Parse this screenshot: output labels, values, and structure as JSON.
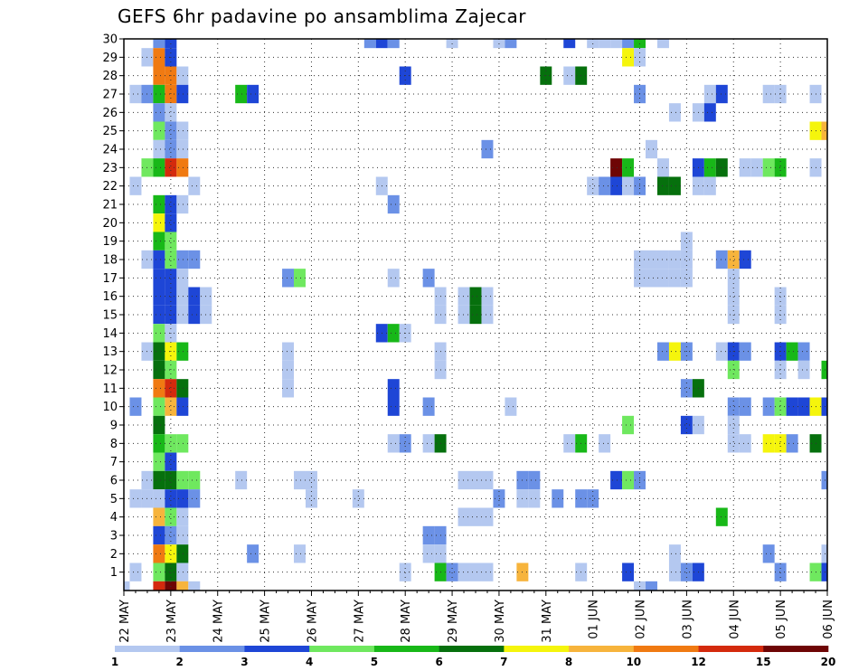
{
  "chart_data": {
    "type": "heatmap",
    "title": "GEFS 6hr padavine po ansamblima Zajecar",
    "x_tick_labels": [
      "22 MAY",
      "23 MAY",
      "24 MAY",
      "25 MAY",
      "26 MAY",
      "27 MAY",
      "28 MAY",
      "29 MAY",
      "30 MAY",
      "31 MAY",
      "01 JUN",
      "02 JUN",
      "03 JUN",
      "04 JUN",
      "05 JUN",
      "06 JUN"
    ],
    "y_tick_labels": [
      "1",
      "2",
      "3",
      "4",
      "5",
      "6",
      "7",
      "8",
      "9",
      "10",
      "11",
      "12",
      "13",
      "14",
      "15",
      "16",
      "17",
      "18",
      "19",
      "20",
      "21",
      "22",
      "23",
      "24",
      "25",
      "26",
      "27",
      "28",
      "29",
      "30"
    ],
    "y_range": [
      0,
      30
    ],
    "x_steps_per_day": 4,
    "x_range_steps": [
      0,
      60
    ],
    "grid": true,
    "colorbar": {
      "placement": "bottom",
      "levels": [
        "1",
        "2",
        "3",
        "4",
        "5",
        "6",
        "7",
        "8",
        "10",
        "12",
        "15",
        "20"
      ],
      "colors": [
        "#b4c8f0",
        "#6b91e6",
        "#1e46d6",
        "#6fe85f",
        "#18b818",
        "#06700d",
        "#f5f50c",
        "#f7b43c",
        "#f07a12",
        "#d42a0d",
        "#6e0505"
      ]
    },
    "cells": [
      [
        3,
        30,
        1
      ],
      [
        4,
        30,
        2
      ],
      [
        21,
        30,
        1
      ],
      [
        22,
        30,
        2
      ],
      [
        23,
        30,
        1
      ],
      [
        28,
        30,
        0
      ],
      [
        32,
        30,
        0
      ],
      [
        33,
        30,
        1
      ],
      [
        38,
        30,
        2
      ],
      [
        40,
        30,
        0
      ],
      [
        41,
        30,
        0
      ],
      [
        42,
        30,
        0
      ],
      [
        43,
        30,
        1
      ],
      [
        44,
        30,
        4
      ],
      [
        46,
        30,
        0
      ],
      [
        2,
        29,
        0
      ],
      [
        3,
        29,
        8
      ],
      [
        4,
        29,
        2
      ],
      [
        43,
        29,
        6
      ],
      [
        44,
        29,
        0
      ],
      [
        3,
        28,
        8
      ],
      [
        4,
        28,
        8
      ],
      [
        5,
        28,
        0
      ],
      [
        24,
        28,
        2
      ],
      [
        36,
        28,
        5
      ],
      [
        38,
        28,
        0
      ],
      [
        39,
        28,
        5
      ],
      [
        1,
        27,
        0
      ],
      [
        2,
        27,
        1
      ],
      [
        3,
        27,
        4
      ],
      [
        4,
        27,
        8
      ],
      [
        5,
        27,
        2
      ],
      [
        10,
        27,
        4
      ],
      [
        11,
        27,
        2
      ],
      [
        44,
        27,
        1
      ],
      [
        50,
        27,
        0
      ],
      [
        51,
        27,
        2
      ],
      [
        55,
        27,
        0
      ],
      [
        56,
        27,
        0
      ],
      [
        59,
        27,
        0
      ],
      [
        3,
        26,
        1
      ],
      [
        4,
        26,
        0
      ],
      [
        47,
        26,
        0
      ],
      [
        49,
        26,
        0
      ],
      [
        50,
        26,
        2
      ],
      [
        3,
        25,
        3
      ],
      [
        4,
        25,
        1
      ],
      [
        5,
        25,
        0
      ],
      [
        59,
        25,
        6
      ],
      [
        60,
        25,
        7
      ],
      [
        3,
        24,
        0
      ],
      [
        4,
        24,
        1
      ],
      [
        5,
        24,
        0
      ],
      [
        31,
        24,
        1
      ],
      [
        45,
        24,
        0
      ],
      [
        2,
        23,
        3
      ],
      [
        3,
        23,
        4
      ],
      [
        4,
        23,
        9
      ],
      [
        5,
        23,
        8
      ],
      [
        42,
        23,
        10
      ],
      [
        43,
        23,
        4
      ],
      [
        46,
        23,
        0
      ],
      [
        49,
        23,
        2
      ],
      [
        50,
        23,
        4
      ],
      [
        51,
        23,
        5
      ],
      [
        53,
        23,
        0
      ],
      [
        54,
        23,
        0
      ],
      [
        55,
        23,
        3
      ],
      [
        56,
        23,
        4
      ],
      [
        59,
        23,
        0
      ],
      [
        1,
        22,
        0
      ],
      [
        6,
        22,
        0
      ],
      [
        22,
        22,
        0
      ],
      [
        40,
        22,
        0
      ],
      [
        41,
        22,
        1
      ],
      [
        42,
        22,
        2
      ],
      [
        43,
        22,
        0
      ],
      [
        44,
        22,
        1
      ],
      [
        46,
        22,
        5
      ],
      [
        47,
        22,
        5
      ],
      [
        49,
        22,
        0
      ],
      [
        50,
        22,
        0
      ],
      [
        3,
        21,
        4
      ],
      [
        4,
        21,
        2
      ],
      [
        5,
        21,
        0
      ],
      [
        23,
        21,
        1
      ],
      [
        3,
        20,
        6
      ],
      [
        4,
        20,
        2
      ],
      [
        3,
        19,
        4
      ],
      [
        4,
        19,
        3
      ],
      [
        48,
        19,
        0
      ],
      [
        2,
        18,
        0
      ],
      [
        3,
        18,
        2
      ],
      [
        4,
        18,
        3
      ],
      [
        5,
        18,
        1
      ],
      [
        6,
        18,
        1
      ],
      [
        44,
        18,
        0
      ],
      [
        45,
        18,
        0
      ],
      [
        46,
        18,
        0
      ],
      [
        47,
        18,
        0
      ],
      [
        48,
        18,
        0
      ],
      [
        51,
        18,
        1
      ],
      [
        52,
        18,
        7
      ],
      [
        53,
        18,
        2
      ],
      [
        3,
        17,
        2
      ],
      [
        4,
        17,
        2
      ],
      [
        5,
        17,
        0
      ],
      [
        14,
        17,
        1
      ],
      [
        15,
        17,
        3
      ],
      [
        23,
        17,
        0
      ],
      [
        26,
        17,
        1
      ],
      [
        44,
        17,
        0
      ],
      [
        45,
        17,
        0
      ],
      [
        46,
        17,
        0
      ],
      [
        47,
        17,
        0
      ],
      [
        48,
        17,
        0
      ],
      [
        52,
        17,
        0
      ],
      [
        3,
        16,
        2
      ],
      [
        4,
        16,
        2
      ],
      [
        5,
        16,
        0
      ],
      [
        6,
        16,
        2
      ],
      [
        7,
        16,
        0
      ],
      [
        27,
        16,
        0
      ],
      [
        29,
        16,
        0
      ],
      [
        30,
        16,
        5
      ],
      [
        31,
        16,
        0
      ],
      [
        52,
        16,
        0
      ],
      [
        56,
        16,
        0
      ],
      [
        3,
        15,
        2
      ],
      [
        4,
        15,
        2
      ],
      [
        5,
        15,
        0
      ],
      [
        6,
        15,
        2
      ],
      [
        7,
        15,
        0
      ],
      [
        27,
        15,
        0
      ],
      [
        29,
        15,
        0
      ],
      [
        30,
        15,
        5
      ],
      [
        31,
        15,
        0
      ],
      [
        52,
        15,
        0
      ],
      [
        56,
        15,
        0
      ],
      [
        3,
        14,
        3
      ],
      [
        4,
        14,
        0
      ],
      [
        22,
        14,
        2
      ],
      [
        23,
        14,
        4
      ],
      [
        24,
        14,
        0
      ],
      [
        2,
        13,
        0
      ],
      [
        3,
        13,
        5
      ],
      [
        4,
        13,
        6
      ],
      [
        5,
        13,
        4
      ],
      [
        14,
        13,
        0
      ],
      [
        27,
        13,
        0
      ],
      [
        46,
        13,
        1
      ],
      [
        47,
        13,
        6
      ],
      [
        48,
        13,
        1
      ],
      [
        51,
        13,
        0
      ],
      [
        52,
        13,
        2
      ],
      [
        53,
        13,
        1
      ],
      [
        56,
        13,
        2
      ],
      [
        57,
        13,
        4
      ],
      [
        58,
        13,
        1
      ],
      [
        3,
        12,
        5
      ],
      [
        4,
        12,
        3
      ],
      [
        27,
        12,
        0
      ],
      [
        14,
        12,
        0
      ],
      [
        52,
        12,
        3
      ],
      [
        56,
        12,
        0
      ],
      [
        58,
        12,
        0
      ],
      [
        60,
        12,
        4
      ],
      [
        3,
        11,
        8
      ],
      [
        4,
        11,
        9
      ],
      [
        5,
        11,
        5
      ],
      [
        14,
        11,
        0
      ],
      [
        23,
        11,
        2
      ],
      [
        48,
        11,
        1
      ],
      [
        49,
        11,
        5
      ],
      [
        1,
        10,
        1
      ],
      [
        3,
        10,
        3
      ],
      [
        4,
        10,
        7
      ],
      [
        5,
        10,
        2
      ],
      [
        23,
        10,
        2
      ],
      [
        26,
        10,
        1
      ],
      [
        33,
        10,
        0
      ],
      [
        52,
        10,
        1
      ],
      [
        53,
        10,
        1
      ],
      [
        55,
        10,
        1
      ],
      [
        56,
        10,
        3
      ],
      [
        57,
        10,
        2
      ],
      [
        58,
        10,
        2
      ],
      [
        59,
        10,
        6
      ],
      [
        60,
        10,
        2
      ],
      [
        3,
        9,
        5
      ],
      [
        43,
        9,
        3
      ],
      [
        48,
        9,
        2
      ],
      [
        49,
        9,
        0
      ],
      [
        52,
        9,
        0
      ],
      [
        3,
        8,
        4
      ],
      [
        4,
        8,
        3
      ],
      [
        5,
        8,
        3
      ],
      [
        23,
        8,
        0
      ],
      [
        24,
        8,
        1
      ],
      [
        26,
        8,
        0
      ],
      [
        27,
        8,
        5
      ],
      [
        38,
        8,
        0
      ],
      [
        39,
        8,
        4
      ],
      [
        41,
        8,
        0
      ],
      [
        52,
        8,
        0
      ],
      [
        53,
        8,
        0
      ],
      [
        55,
        8,
        6
      ],
      [
        56,
        8,
        6
      ],
      [
        57,
        8,
        1
      ],
      [
        59,
        8,
        5
      ],
      [
        3,
        7,
        3
      ],
      [
        4,
        7,
        2
      ],
      [
        2,
        6,
        0
      ],
      [
        3,
        6,
        5
      ],
      [
        4,
        6,
        5
      ],
      [
        5,
        6,
        3
      ],
      [
        6,
        6,
        3
      ],
      [
        10,
        6,
        0
      ],
      [
        15,
        6,
        0
      ],
      [
        16,
        6,
        0
      ],
      [
        29,
        6,
        0
      ],
      [
        30,
        6,
        0
      ],
      [
        31,
        6,
        0
      ],
      [
        34,
        6,
        1
      ],
      [
        35,
        6,
        1
      ],
      [
        42,
        6,
        2
      ],
      [
        43,
        6,
        3
      ],
      [
        44,
        6,
        1
      ],
      [
        60,
        6,
        1
      ],
      [
        1,
        5,
        0
      ],
      [
        2,
        5,
        0
      ],
      [
        3,
        5,
        0
      ],
      [
        4,
        5,
        2
      ],
      [
        5,
        5,
        2
      ],
      [
        6,
        5,
        1
      ],
      [
        16,
        5,
        0
      ],
      [
        20,
        5,
        0
      ],
      [
        32,
        5,
        1
      ],
      [
        34,
        5,
        0
      ],
      [
        35,
        5,
        0
      ],
      [
        37,
        5,
        1
      ],
      [
        39,
        5,
        1
      ],
      [
        40,
        5,
        1
      ],
      [
        3,
        4,
        7
      ],
      [
        4,
        4,
        3
      ],
      [
        5,
        4,
        0
      ],
      [
        29,
        4,
        0
      ],
      [
        30,
        4,
        0
      ],
      [
        31,
        4,
        0
      ],
      [
        51,
        4,
        4
      ],
      [
        3,
        3,
        2
      ],
      [
        4,
        3,
        1
      ],
      [
        5,
        3,
        0
      ],
      [
        26,
        3,
        1
      ],
      [
        27,
        3,
        1
      ],
      [
        3,
        2,
        8
      ],
      [
        4,
        2,
        6
      ],
      [
        5,
        2,
        5
      ],
      [
        11,
        2,
        1
      ],
      [
        15,
        2,
        0
      ],
      [
        26,
        2,
        0
      ],
      [
        27,
        2,
        0
      ],
      [
        47,
        2,
        0
      ],
      [
        55,
        2,
        1
      ],
      [
        60,
        2,
        0
      ],
      [
        1,
        1,
        0
      ],
      [
        3,
        1,
        3
      ],
      [
        4,
        1,
        5
      ],
      [
        5,
        1,
        0
      ],
      [
        24,
        1,
        0
      ],
      [
        27,
        1,
        4
      ],
      [
        28,
        1,
        1
      ],
      [
        29,
        1,
        0
      ],
      [
        30,
        1,
        0
      ],
      [
        31,
        1,
        0
      ],
      [
        34,
        1,
        7
      ],
      [
        39,
        1,
        0
      ],
      [
        43,
        1,
        2
      ],
      [
        47,
        1,
        0
      ],
      [
        48,
        1,
        1
      ],
      [
        49,
        1,
        2
      ],
      [
        56,
        1,
        1
      ],
      [
        59,
        1,
        3
      ],
      [
        60,
        1,
        2
      ],
      [
        0,
        0,
        0
      ],
      [
        3,
        0,
        9
      ],
      [
        4,
        0,
        10
      ],
      [
        5,
        0,
        7
      ],
      [
        6,
        0,
        0
      ],
      [
        44,
        0,
        0
      ],
      [
        45,
        0,
        1
      ]
    ]
  }
}
